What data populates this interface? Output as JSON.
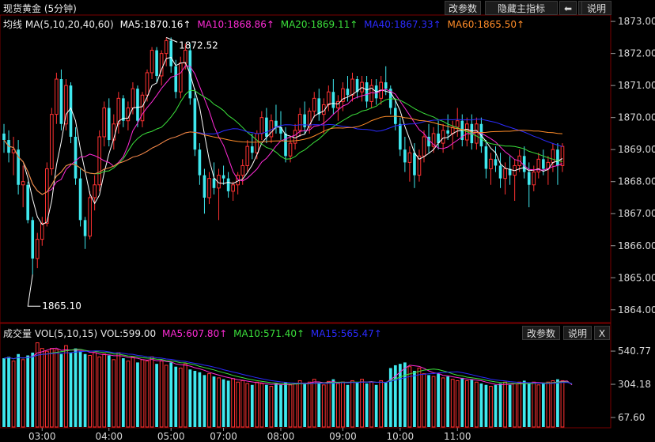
{
  "header": {
    "title": "现货黄金 (5分钟)",
    "buttons": {
      "params": "改参数",
      "hide": "隐藏主指标",
      "left": "⬅",
      "right": "➡",
      "help": "说明"
    }
  },
  "main_legend": {
    "label": "均线",
    "ma_spec": "MA(5,10,20,40,60)",
    "items": [
      {
        "text": "MA5:1870.16↑",
        "color": "#ffffff"
      },
      {
        "text": "MA10:1868.86↑",
        "color": "#ff2bd6"
      },
      {
        "text": "MA20:1869.11↑",
        "color": "#3be03b"
      },
      {
        "text": "MA40:1867.33↑",
        "color": "#2b2bff"
      },
      {
        "text": "MA60:1865.50↑",
        "color": "#ff8c28"
      }
    ]
  },
  "vol_header": {
    "label": "成交量",
    "spec": "VOL(5,10,15)",
    "vol": "VOL:599.00",
    "items": [
      {
        "text": "MA5:607.80↑",
        "color": "#ff2bd6"
      },
      {
        "text": "MA10:571.40↑",
        "color": "#3be03b"
      },
      {
        "text": "MA15:565.47↑",
        "color": "#2b2bff"
      }
    ],
    "buttons": {
      "params": "改参数",
      "help": "说明",
      "close": "X"
    }
  },
  "chart_data": {
    "type": "candlestick",
    "price_axis": {
      "ticks": [
        "1873.00",
        "1872.00",
        "1871.00",
        "1870.00",
        "1869.00",
        "1868.00",
        "1867.00",
        "1866.00",
        "1865.00",
        "1864.00"
      ],
      "range": [
        1863.6,
        1873.2
      ]
    },
    "volume_axis": {
      "ticks": [
        "540.77",
        "304.18",
        "67.60"
      ]
    },
    "time_labels": [
      "03:00",
      "04:00",
      "05:00",
      "07:00",
      "08:00",
      "09:00",
      "10:00",
      "11:00"
    ],
    "annotations": {
      "high": "1872.52",
      "low": "1865.10"
    },
    "colors": {
      "up": "#ff3232",
      "down": "#3fe8ee",
      "grid": "#7a0000"
    },
    "ohlc": [
      [
        1869.5,
        1869.8,
        1868.9,
        1869.3
      ],
      [
        1869.3,
        1869.6,
        1868.6,
        1868.9
      ],
      [
        1868.9,
        1869.4,
        1868.2,
        1869.0
      ],
      [
        1869.0,
        1869.3,
        1867.6,
        1867.9
      ],
      [
        1867.9,
        1868.5,
        1867.2,
        1868.0
      ],
      [
        1867.9,
        1868.0,
        1866.7,
        1866.8
      ],
      [
        1866.8,
        1866.9,
        1865.1,
        1865.6
      ],
      [
        1865.6,
        1866.4,
        1865.3,
        1866.2
      ],
      [
        1866.2,
        1866.9,
        1866.0,
        1866.7
      ],
      [
        1866.7,
        1868.6,
        1866.6,
        1868.4
      ],
      [
        1868.4,
        1870.3,
        1868.2,
        1870.1
      ],
      [
        1870.1,
        1871.4,
        1869.8,
        1871.2
      ],
      [
        1871.2,
        1871.5,
        1869.6,
        1869.8
      ],
      [
        1869.8,
        1871.2,
        1869.6,
        1871.0
      ],
      [
        1871.0,
        1871.1,
        1869.2,
        1869.4
      ],
      [
        1869.4,
        1869.7,
        1867.9,
        1868.1
      ],
      [
        1868.1,
        1868.4,
        1866.6,
        1866.8
      ],
      [
        1866.8,
        1866.9,
        1865.9,
        1866.3
      ],
      [
        1866.3,
        1867.7,
        1866.2,
        1867.5
      ],
      [
        1867.5,
        1868.2,
        1867.1,
        1867.9
      ],
      [
        1867.9,
        1869.6,
        1867.7,
        1869.4
      ],
      [
        1869.4,
        1870.5,
        1869.1,
        1870.3
      ],
      [
        1870.3,
        1870.6,
        1869.1,
        1869.3
      ],
      [
        1869.3,
        1870.1,
        1869.0,
        1869.8
      ],
      [
        1869.8,
        1870.8,
        1869.5,
        1870.6
      ],
      [
        1870.6,
        1870.7,
        1869.7,
        1869.9
      ],
      [
        1869.9,
        1870.5,
        1869.6,
        1870.3
      ],
      [
        1870.3,
        1871.1,
        1870.1,
        1870.9
      ],
      [
        1870.9,
        1871.0,
        1869.7,
        1869.9
      ],
      [
        1869.9,
        1870.8,
        1869.7,
        1870.7
      ],
      [
        1870.7,
        1871.5,
        1870.5,
        1871.4
      ],
      [
        1871.4,
        1872.2,
        1871.2,
        1872.1
      ],
      [
        1872.1,
        1872.2,
        1871.1,
        1871.3
      ],
      [
        1871.3,
        1872.1,
        1871.0,
        1872.0
      ],
      [
        1872.0,
        1872.5,
        1871.6,
        1872.4
      ],
      [
        1872.4,
        1872.5,
        1871.4,
        1871.6
      ],
      [
        1871.6,
        1871.8,
        1870.6,
        1870.8
      ],
      [
        1870.8,
        1871.9,
        1870.6,
        1871.7
      ],
      [
        1871.7,
        1872.3,
        1871.5,
        1872.1
      ],
      [
        1872.1,
        1872.3,
        1870.4,
        1870.6
      ],
      [
        1870.6,
        1870.9,
        1868.8,
        1869.0
      ],
      [
        1869.0,
        1869.2,
        1867.9,
        1868.2
      ],
      [
        1868.2,
        1868.4,
        1867.0,
        1867.5
      ],
      [
        1867.5,
        1868.3,
        1867.3,
        1868.1
      ],
      [
        1868.1,
        1868.6,
        1867.6,
        1867.8
      ],
      [
        1867.8,
        1868.4,
        1866.8,
        1868.2
      ],
      [
        1868.2,
        1868.5,
        1867.9,
        1868.1
      ],
      [
        1868.1,
        1868.3,
        1867.5,
        1867.7
      ],
      [
        1867.7,
        1868.0,
        1867.4,
        1867.9
      ],
      [
        1867.9,
        1868.3,
        1867.6,
        1868.2
      ],
      [
        1868.2,
        1868.7,
        1867.9,
        1868.5
      ],
      [
        1868.5,
        1869.3,
        1868.3,
        1869.1
      ],
      [
        1869.1,
        1869.5,
        1868.7,
        1868.9
      ],
      [
        1868.9,
        1869.6,
        1868.7,
        1869.5
      ],
      [
        1869.5,
        1870.2,
        1869.3,
        1870.0
      ],
      [
        1870.0,
        1870.3,
        1869.2,
        1869.4
      ],
      [
        1869.4,
        1870.1,
        1869.2,
        1869.9
      ],
      [
        1869.9,
        1870.4,
        1869.5,
        1869.7
      ],
      [
        1869.7,
        1870.2,
        1869.3,
        1869.5
      ],
      [
        1869.5,
        1869.7,
        1868.6,
        1868.8
      ],
      [
        1868.8,
        1869.4,
        1868.6,
        1869.2
      ],
      [
        1869.2,
        1869.8,
        1869.0,
        1869.6
      ],
      [
        1869.6,
        1870.3,
        1869.4,
        1870.1
      ],
      [
        1870.1,
        1870.5,
        1869.5,
        1869.7
      ],
      [
        1869.7,
        1870.3,
        1869.5,
        1870.2
      ],
      [
        1870.2,
        1870.8,
        1870.0,
        1870.6
      ],
      [
        1870.6,
        1870.9,
        1869.9,
        1870.1
      ],
      [
        1870.1,
        1870.6,
        1869.5,
        1870.4
      ],
      [
        1870.4,
        1871.0,
        1870.2,
        1870.8
      ],
      [
        1870.8,
        1871.2,
        1870.1,
        1870.3
      ],
      [
        1870.3,
        1870.7,
        1869.9,
        1870.5
      ],
      [
        1870.5,
        1871.1,
        1870.2,
        1870.9
      ],
      [
        1870.9,
        1871.3,
        1870.5,
        1870.7
      ],
      [
        1870.7,
        1871.4,
        1870.5,
        1871.2
      ],
      [
        1871.2,
        1871.3,
        1870.6,
        1870.8
      ],
      [
        1870.8,
        1871.3,
        1870.5,
        1871.1
      ],
      [
        1871.1,
        1871.3,
        1870.3,
        1870.5
      ],
      [
        1870.5,
        1871.2,
        1870.3,
        1871.0
      ],
      [
        1871.0,
        1871.2,
        1870.4,
        1870.6
      ],
      [
        1870.6,
        1871.3,
        1870.4,
        1871.1
      ],
      [
        1871.1,
        1871.6,
        1870.7,
        1870.9
      ],
      [
        1870.9,
        1871.0,
        1870.1,
        1870.3
      ],
      [
        1870.3,
        1870.6,
        1869.6,
        1869.8
      ],
      [
        1869.8,
        1870.0,
        1868.8,
        1869.0
      ],
      [
        1869.0,
        1869.4,
        1868.3,
        1868.6
      ],
      [
        1868.6,
        1869.1,
        1868.0,
        1868.9
      ],
      [
        1868.9,
        1869.2,
        1867.8,
        1868.2
      ],
      [
        1868.2,
        1869.0,
        1868.0,
        1868.8
      ],
      [
        1868.8,
        1869.6,
        1868.6,
        1869.4
      ],
      [
        1869.4,
        1869.8,
        1868.9,
        1869.1
      ],
      [
        1869.1,
        1869.7,
        1868.9,
        1869.5
      ],
      [
        1869.5,
        1869.9,
        1869.0,
        1869.2
      ],
      [
        1869.2,
        1869.8,
        1868.9,
        1869.6
      ],
      [
        1869.6,
        1870.1,
        1869.3,
        1869.5
      ],
      [
        1869.5,
        1869.9,
        1869.0,
        1869.7
      ],
      [
        1869.7,
        1870.3,
        1869.4,
        1869.9
      ],
      [
        1869.9,
        1870.1,
        1869.1,
        1869.3
      ],
      [
        1869.3,
        1870.0,
        1869.1,
        1869.8
      ],
      [
        1869.8,
        1870.1,
        1869.0,
        1869.2
      ],
      [
        1869.2,
        1870.0,
        1869.0,
        1869.8
      ],
      [
        1869.8,
        1870.0,
        1868.9,
        1869.1
      ],
      [
        1869.1,
        1869.3,
        1868.1,
        1868.4
      ],
      [
        1868.4,
        1868.9,
        1867.9,
        1868.7
      ],
      [
        1868.7,
        1869.1,
        1868.3,
        1868.5
      ],
      [
        1868.5,
        1868.9,
        1867.8,
        1868.1
      ],
      [
        1868.1,
        1868.6,
        1867.6,
        1868.4
      ],
      [
        1868.4,
        1868.8,
        1867.9,
        1868.2
      ],
      [
        1868.2,
        1868.7,
        1867.4,
        1868.5
      ],
      [
        1868.5,
        1869.0,
        1868.3,
        1868.8
      ],
      [
        1868.8,
        1869.1,
        1868.1,
        1868.3
      ],
      [
        1868.3,
        1868.6,
        1867.2,
        1867.9
      ],
      [
        1867.9,
        1868.5,
        1867.7,
        1868.3
      ],
      [
        1868.3,
        1868.9,
        1868.1,
        1868.7
      ],
      [
        1868.7,
        1869.0,
        1868.2,
        1868.4
      ],
      [
        1868.4,
        1868.8,
        1867.9,
        1868.6
      ],
      [
        1868.6,
        1869.2,
        1868.3,
        1869.0
      ],
      [
        1869.0,
        1869.2,
        1867.9,
        1868.5
      ],
      [
        1868.5,
        1869.2,
        1868.3,
        1869.1
      ]
    ],
    "volume": [
      490,
      500,
      470,
      520,
      480,
      510,
      530,
      600,
      560,
      540,
      560,
      550,
      520,
      580,
      530,
      560,
      540,
      520,
      510,
      530,
      500,
      520,
      510,
      480,
      530,
      490,
      470,
      500,
      460,
      480,
      470,
      500,
      450,
      470,
      440,
      460,
      430,
      420,
      450,
      410,
      400,
      390,
      370,
      380,
      360,
      350,
      340,
      330,
      345,
      320,
      330,
      310,
      300,
      320,
      310,
      300,
      290,
      310,
      300,
      320,
      300,
      310,
      330,
      305,
      320,
      340,
      310,
      300,
      325,
      340,
      310,
      320,
      300,
      330,
      320,
      340,
      310,
      320,
      300,
      330,
      320,
      420,
      440,
      450,
      460,
      430,
      400,
      420,
      380,
      370,
      360,
      380,
      350,
      360,
      340,
      330,
      350,
      330,
      340,
      320,
      310,
      300,
      290,
      300,
      310,
      320,
      300,
      310,
      320,
      330,
      310,
      320,
      300,
      310,
      320,
      330,
      340,
      330,
      320,
      180
    ]
  }
}
